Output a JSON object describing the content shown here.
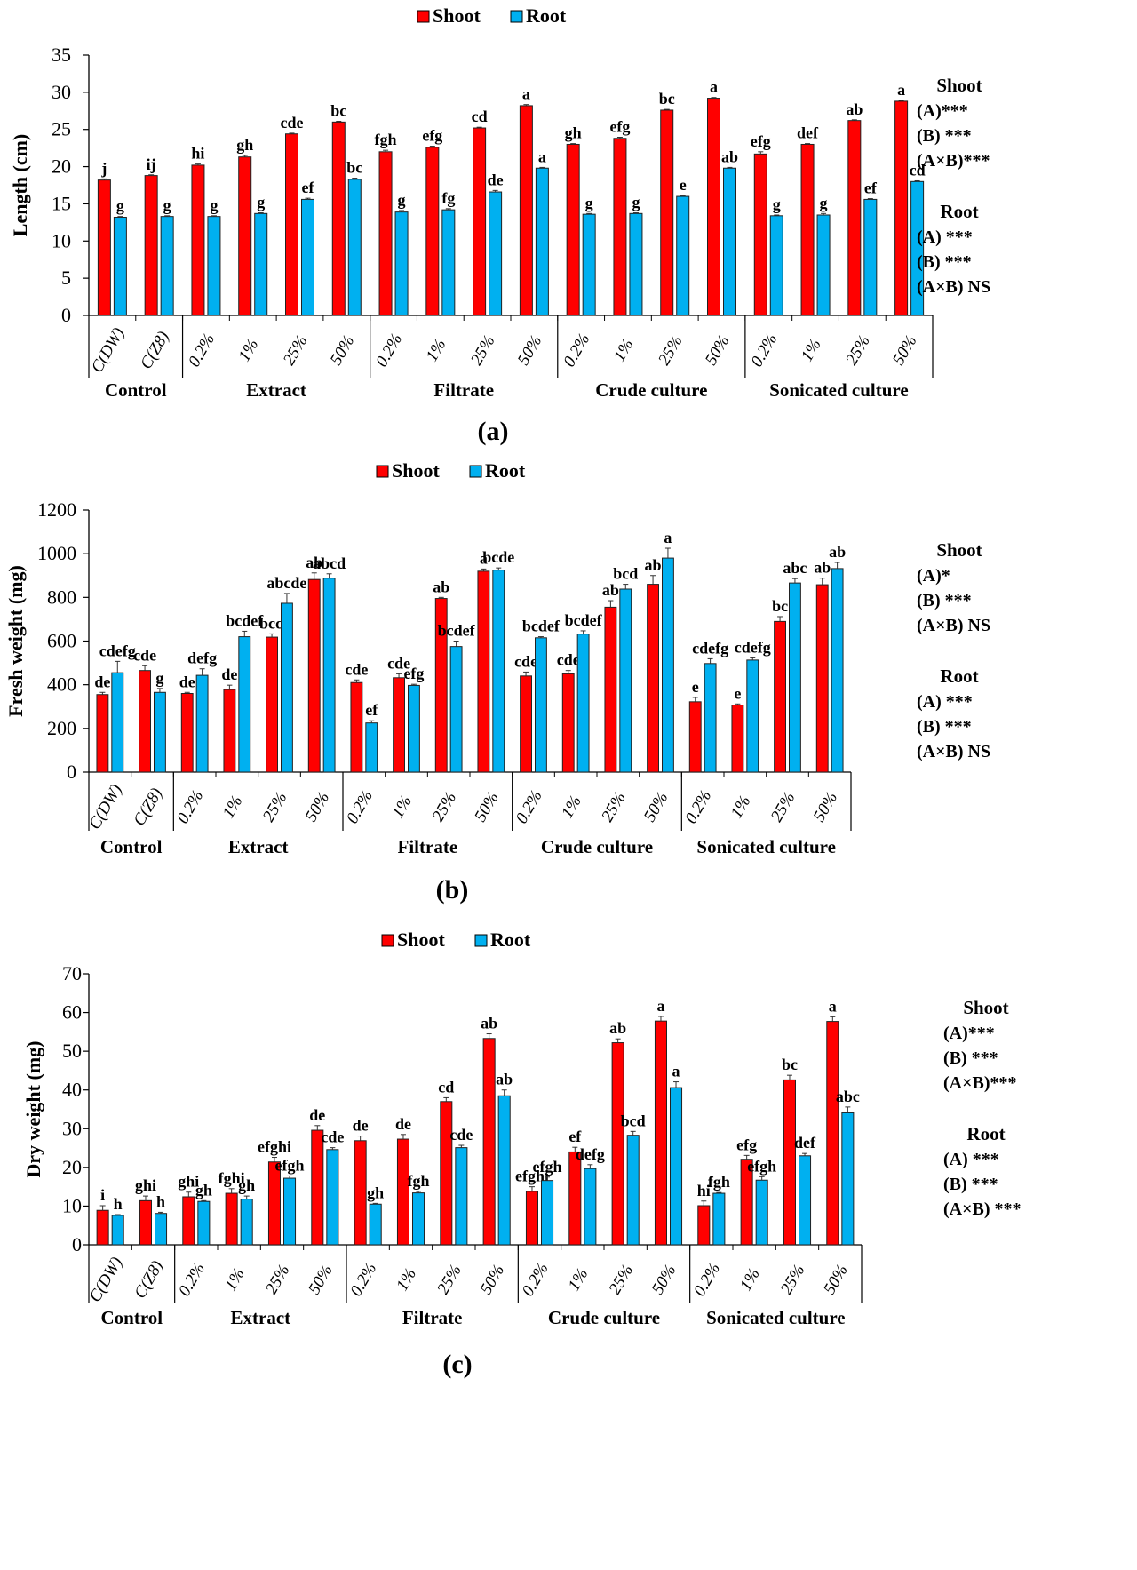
{
  "colors": {
    "shoot": "#ff0000",
    "root": "#00b0f0"
  },
  "chart_data": [
    {
      "type": "bar",
      "panel_label": "(a)",
      "ylabel": "Length (cm)",
      "ylim": [
        0,
        35
      ],
      "yticks": [
        0,
        5,
        10,
        15,
        20,
        25,
        30,
        35
      ],
      "legend": [
        "Shoot",
        "Root"
      ],
      "legend_position": "top-center",
      "categories": [
        "C(DW)",
        "C(Z8)",
        "0.2%",
        "1%",
        "25%",
        "50%",
        "0.2%",
        "1%",
        "25%",
        "50%",
        "0.2%",
        "1%",
        "25%",
        "50%",
        "0.2%",
        "1%",
        "25%",
        "50%"
      ],
      "groups": [
        {
          "name": "Control",
          "count": 2
        },
        {
          "name": "Extract",
          "count": 4
        },
        {
          "name": "Filtrate",
          "count": 4
        },
        {
          "name": "Crude culture",
          "count": 4
        },
        {
          "name": "Sonicated culture",
          "count": 4
        }
      ],
      "series": [
        {
          "name": "Shoot",
          "values": [
            18.2,
            18.8,
            20.2,
            21.3,
            24.4,
            26.0,
            22.0,
            22.6,
            25.2,
            28.2,
            23.0,
            23.8,
            27.6,
            29.2,
            21.7,
            23.0,
            26.2,
            28.8
          ],
          "errors": [
            0.15,
            0.1,
            0.15,
            0.2,
            0.1,
            0.1,
            0.2,
            0.15,
            0.1,
            0.15,
            0.1,
            0.15,
            0.1,
            0.1,
            0.3,
            0.1,
            0.1,
            0.1
          ],
          "letters": [
            "j",
            "ij",
            "hi",
            "gh",
            "cde",
            "bc",
            "fgh",
            "efg",
            "cd",
            "a",
            "gh",
            "efg",
            "bc",
            "a",
            "efg",
            "def",
            "ab",
            "a"
          ]
        },
        {
          "name": "Root",
          "values": [
            13.2,
            13.3,
            13.3,
            13.7,
            15.6,
            18.3,
            13.9,
            14.2,
            16.6,
            19.8,
            13.6,
            13.7,
            16.0,
            19.8,
            13.4,
            13.5,
            15.6,
            18.0
          ],
          "errors": [
            0.1,
            0.1,
            0.1,
            0.1,
            0.15,
            0.15,
            0.2,
            0.15,
            0.2,
            0.1,
            0.1,
            0.1,
            0.1,
            0.1,
            0.1,
            0.2,
            0.1,
            0.1
          ],
          "letters": [
            "g",
            "g",
            "g",
            "g",
            "ef",
            "bc",
            "g",
            "fg",
            "de",
            "a",
            "g",
            "g",
            "e",
            "ab",
            "g",
            "g",
            "ef",
            "cd"
          ]
        }
      ],
      "stats": {
        "shoot": {
          "title": "Shoot",
          "lines": [
            "(A)***",
            "(B) ***",
            "(A×B)***"
          ]
        },
        "root": {
          "title": "Root",
          "lines": [
            "(A) ***",
            "(B) ***",
            "(A×B) NS"
          ]
        }
      }
    },
    {
      "type": "bar",
      "panel_label": "(b)",
      "ylabel": "Fresh weight (mg)",
      "ylim": [
        0,
        1200
      ],
      "yticks": [
        0,
        200,
        400,
        600,
        800,
        1000,
        1200
      ],
      "legend": [
        "Shoot",
        "Root"
      ],
      "legend_position": "top-center",
      "categories": [
        "C(DW)",
        "C(Z8)",
        "0.2%",
        "1%",
        "25%",
        "50%",
        "0.2%",
        "1%",
        "25%",
        "50%",
        "0.2%",
        "1%",
        "25%",
        "50%",
        "0.2%",
        "1%",
        "25%",
        "50%"
      ],
      "groups": [
        {
          "name": "Control",
          "count": 2
        },
        {
          "name": "Extract",
          "count": 4
        },
        {
          "name": "Filtrate",
          "count": 4
        },
        {
          "name": "Crude culture",
          "count": 4
        },
        {
          "name": "Sonicated culture",
          "count": 4
        }
      ],
      "series": [
        {
          "name": "Shoot",
          "values": [
            355,
            465,
            360,
            378,
            618,
            882,
            410,
            432,
            795,
            920,
            440,
            450,
            755,
            860,
            322,
            307,
            690,
            858
          ],
          "errors": [
            10,
            22,
            5,
            20,
            15,
            30,
            12,
            18,
            5,
            10,
            18,
            15,
            30,
            40,
            20,
            5,
            22,
            30
          ],
          "letters": [
            "de",
            "cde",
            "de",
            "de",
            "bcd",
            "ab",
            "cde",
            "cde",
            "ab",
            "a",
            "cde",
            "cde",
            "ab",
            "ab",
            "e",
            "e",
            "bc",
            "ab"
          ]
        },
        {
          "name": "Root",
          "values": [
            455,
            365,
            443,
            620,
            773,
            888,
            225,
            397,
            575,
            925,
            615,
            632,
            838,
            980,
            497,
            513,
            866,
            932
          ],
          "errors": [
            52,
            18,
            30,
            25,
            45,
            20,
            10,
            5,
            25,
            10,
            5,
            15,
            22,
            45,
            22,
            10,
            20,
            28
          ],
          "letters": [
            "cdefg",
            "g",
            "defg",
            "bcdef",
            "abcde",
            "abcd",
            "ef",
            "efg",
            "bcdef",
            "bcde",
            "bcdef",
            "bcdef",
            "bcd",
            "a",
            "cdefg",
            "cdefg",
            "abc",
            "ab"
          ]
        }
      ],
      "stats": {
        "shoot": {
          "title": "Shoot",
          "lines": [
            "(A)*",
            "(B) ***",
            "(A×B) NS"
          ]
        },
        "root": {
          "title": "Root",
          "lines": [
            "(A) ***",
            "(B) ***",
            "(A×B) NS"
          ]
        }
      }
    },
    {
      "type": "bar",
      "panel_label": "(c)",
      "ylabel": "Dry weight (mg)",
      "ylim": [
        0,
        70
      ],
      "yticks": [
        0,
        10,
        20,
        30,
        40,
        50,
        60,
        70
      ],
      "legend": [
        "Shoot",
        "Root"
      ],
      "legend_position": "top-center",
      "categories": [
        "C(DW)",
        "C(Z8)",
        "0.2%",
        "1%",
        "25%",
        "50%",
        "0.2%",
        "1%",
        "25%",
        "50%",
        "0.2%",
        "1%",
        "25%",
        "50%",
        "0.2%",
        "1%",
        "25%",
        "50%"
      ],
      "groups": [
        {
          "name": "Control",
          "count": 2
        },
        {
          "name": "Extract",
          "count": 4
        },
        {
          "name": "Filtrate",
          "count": 4
        },
        {
          "name": "Crude culture",
          "count": 4
        },
        {
          "name": "Sonicated culture",
          "count": 4
        }
      ],
      "series": [
        {
          "name": "Shoot",
          "values": [
            8.9,
            11.4,
            12.4,
            13.3,
            21.4,
            29.6,
            26.9,
            27.3,
            37.0,
            53.3,
            13.8,
            24.0,
            52.2,
            57.8,
            10.1,
            22.1,
            42.6,
            57.7
          ],
          "errors": [
            1.2,
            1.2,
            1.2,
            1.2,
            1.2,
            1.2,
            1.2,
            1.2,
            1.0,
            1.2,
            1.2,
            1.2,
            1.0,
            1.2,
            1.2,
            1.0,
            1.2,
            1.2
          ],
          "letters": [
            "i",
            "ghi",
            "ghi",
            "fghi",
            "efghi",
            "de",
            "de",
            "de",
            "cd",
            "ab",
            "efghi",
            "ef",
            "ab",
            "a",
            "hi",
            "efg",
            "bc",
            "a"
          ]
        },
        {
          "name": "Root",
          "values": [
            7.6,
            8.1,
            11.2,
            11.8,
            17.2,
            24.6,
            10.5,
            13.4,
            25.1,
            38.5,
            16.6,
            19.7,
            28.3,
            40.6,
            13.3,
            16.7,
            23.0,
            34.1
          ],
          "errors": [
            0.2,
            0.3,
            0.2,
            0.8,
            0.6,
            0.5,
            0.2,
            0.4,
            0.6,
            1.5,
            0.9,
            1.0,
            1.0,
            1.5,
            0.2,
            0.9,
            0.6,
            1.5
          ],
          "letters": [
            "h",
            "h",
            "gh",
            "gh",
            "efgh",
            "cde",
            "gh",
            "fgh",
            "cde",
            "ab",
            "efgh",
            "defg",
            "bcd",
            "a",
            "fgh",
            "efgh",
            "def",
            "abc"
          ]
        }
      ],
      "stats": {
        "shoot": {
          "title": "Shoot",
          "lines": [
            "(A)***",
            "(B) ***",
            "(A×B)***"
          ]
        },
        "root": {
          "title": "Root",
          "lines": [
            "(A) ***",
            "(B) ***",
            "(A×B) ***"
          ]
        }
      }
    }
  ]
}
